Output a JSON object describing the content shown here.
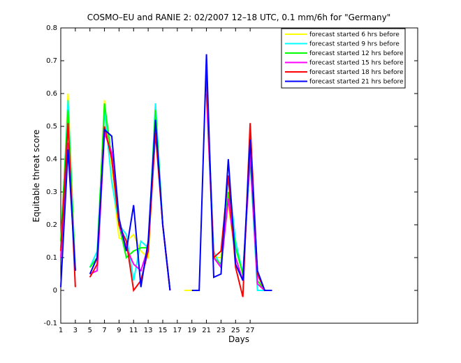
{
  "chart_data": {
    "type": "line",
    "title": "COSMO–EU and RANIE 2: 02/2007 12–18 UTC, 0.1 mm/6h for \"Germany\"",
    "xlabel": "Days",
    "ylabel": "Equitable threat score",
    "x": [
      1,
      2,
      3,
      4,
      5,
      6,
      7,
      8,
      9,
      10,
      11,
      12,
      13,
      14,
      15,
      16,
      17,
      18,
      19,
      20,
      21,
      22,
      23,
      24,
      25,
      26,
      27,
      28,
      29,
      30
    ],
    "xlim": [
      1,
      50
    ],
    "xticks": [
      1,
      3,
      5,
      7,
      9,
      11,
      13,
      15,
      17,
      19,
      21,
      23,
      25,
      27
    ],
    "ylim": [
      -0.1,
      0.8
    ],
    "yticks": [
      -0.1,
      0,
      0.1,
      0.2,
      0.3,
      0.4,
      0.5,
      0.6,
      0.7,
      0.8
    ],
    "legend": "upper right",
    "series": [
      {
        "name": "forecast started 6 hrs before",
        "color": "#ffff00",
        "values": [
          0.1,
          0.6,
          0.06,
          null,
          0.05,
          0.1,
          0.58,
          0.35,
          0.16,
          0.15,
          0.17,
          0.12,
          0.1,
          0.5,
          0.2,
          0,
          null,
          0,
          0,
          null,
          0.6,
          0.1,
          0.1,
          0.26,
          0.1,
          0.03,
          0.42,
          0.02,
          0,
          0
        ]
      },
      {
        "name": "forecast started 9 hrs before",
        "color": "#00ffff",
        "values": [
          0.13,
          0.58,
          0.06,
          null,
          0.07,
          0.12,
          0.55,
          0.33,
          0.2,
          0.17,
          0.03,
          0.15,
          0.13,
          0.57,
          0.2,
          0,
          null,
          null,
          null,
          null,
          0.65,
          0.12,
          0.07,
          0.35,
          0.15,
          0.05,
          0.4,
          0,
          0,
          0
        ]
      },
      {
        "name": "forecast started 12 hrs before",
        "color": "#00ff00",
        "values": [
          0.15,
          0.55,
          0.06,
          null,
          0.07,
          0.1,
          0.57,
          0.4,
          0.2,
          0.1,
          0.12,
          0.13,
          0.13,
          0.55,
          0.2,
          0,
          null,
          null,
          null,
          null,
          0.62,
          0.1,
          0.08,
          0.3,
          0.13,
          0.05,
          0.4,
          0.03,
          0,
          0
        ]
      },
      {
        "name": "forecast started 15 hrs before",
        "color": "#ff00ff",
        "values": [
          0.1,
          0.45,
          0.06,
          null,
          0.05,
          0.06,
          0.48,
          0.42,
          0.2,
          0.13,
          0.08,
          0.06,
          0.13,
          0.5,
          0.2,
          0,
          null,
          null,
          null,
          null,
          0.6,
          0.1,
          0.07,
          0.28,
          0.1,
          0.03,
          0.42,
          0.02,
          0,
          0
        ]
      },
      {
        "name": "forecast started 18 hrs before",
        "color": "#ff0000",
        "values": [
          0.12,
          0.51,
          0.01,
          null,
          0.04,
          0.08,
          0.5,
          0.4,
          0.2,
          0.15,
          0,
          0.03,
          0.12,
          0.48,
          0.2,
          0,
          null,
          null,
          null,
          null,
          0.65,
          0.1,
          0.12,
          0.35,
          0.07,
          -0.02,
          0.51,
          0.05,
          0,
          0
        ]
      },
      {
        "name": "forecast started 21 hrs before",
        "color": "#0000ff",
        "values": [
          0.01,
          0.43,
          0.06,
          null,
          0.05,
          0.1,
          0.49,
          0.47,
          0.22,
          0.12,
          0.26,
          0.01,
          0.15,
          0.52,
          0.2,
          0,
          null,
          null,
          0,
          0,
          0.72,
          0.04,
          0.05,
          0.4,
          0.08,
          0.03,
          0.46,
          0.06,
          0,
          0
        ]
      }
    ]
  }
}
